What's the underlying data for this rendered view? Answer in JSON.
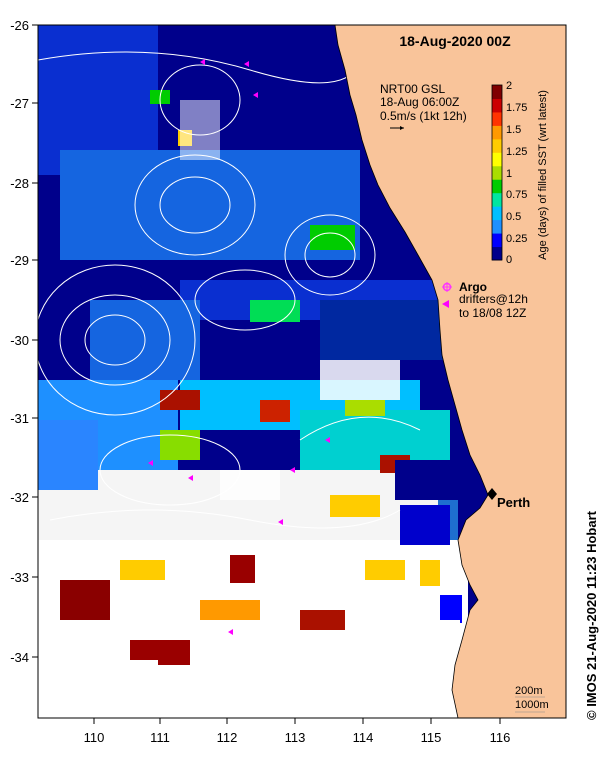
{
  "map": {
    "title": "18-Aug-2020 00Z",
    "product_line1": "NRT00 GSL",
    "product_line2": "18-Aug 06:00Z",
    "product_line3": "0.5m/s (1kt 12h)",
    "lon_ticks": [
      "110",
      "111",
      "112",
      "113",
      "114",
      "115",
      "116"
    ],
    "lat_ticks": [
      "-26",
      "-27",
      "-28",
      "-29",
      "-30",
      "-31",
      "-32",
      "-33",
      "-34"
    ],
    "city": "Perth",
    "argo_label": "Argo",
    "drifters_line1": "drifters@12h",
    "drifters_line2": "to 18/08 12Z",
    "isobath_1": "200m",
    "isobath_2": "1000m",
    "credit": "© IMOS 21-Aug-2020 11:23 Hobart",
    "colors": {
      "land": "#f9c49a",
      "argo": "#ff33ff",
      "drifter": "#ff00ff",
      "contour": "#ffffff"
    }
  },
  "colorbar": {
    "label": "Age (days) of filled SST (wrt latest)",
    "ticks": [
      "2",
      "1.75",
      "1.5",
      "1.25",
      "1",
      "0.75",
      "0.5",
      "0.25",
      "0"
    ],
    "vmin": 0,
    "vmax": 2,
    "colors": [
      "#00008b",
      "#0000ff",
      "#1e90ff",
      "#00bfff",
      "#00e5a0",
      "#00cc00",
      "#aadd00",
      "#ffff00",
      "#ffcc00",
      "#ff9900",
      "#ff3300",
      "#cc0000",
      "#800000"
    ]
  }
}
